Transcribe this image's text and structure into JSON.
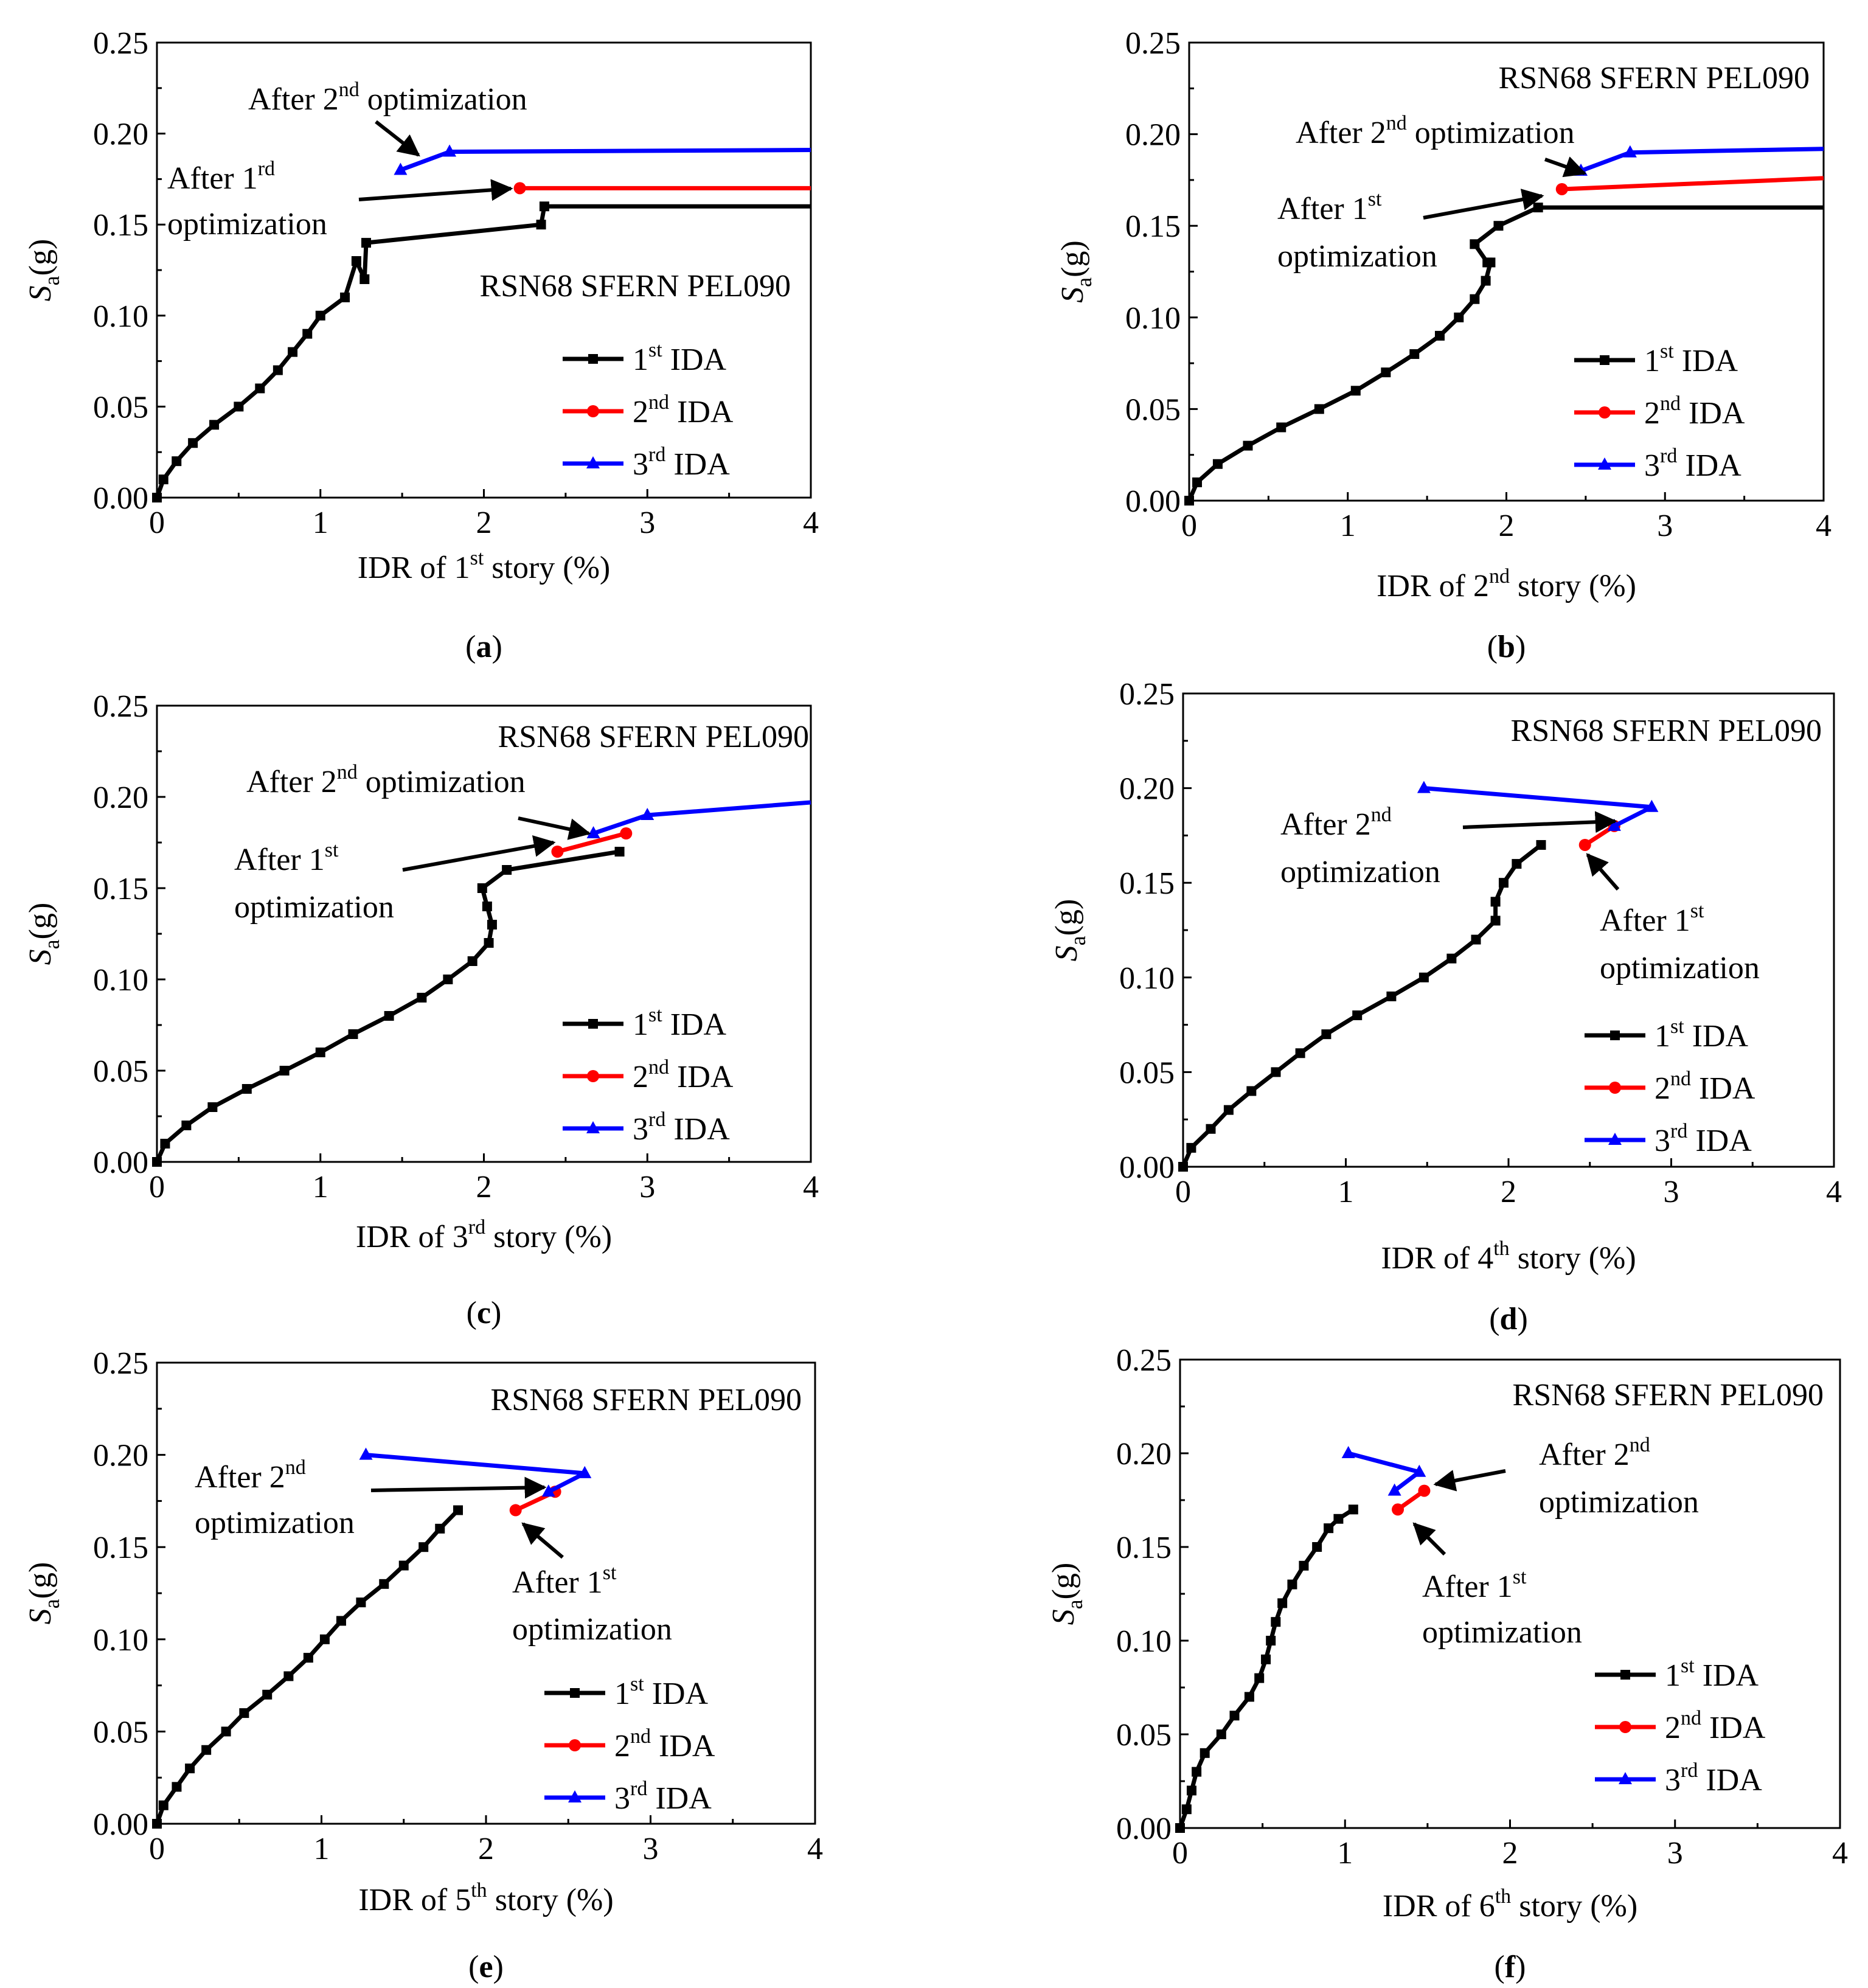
{
  "colors": {
    "ida1": "#000000",
    "ida2": "#ff0000",
    "ida3": "#0000ff"
  },
  "chart_data": [
    {
      "type": "line",
      "caption": "a",
      "title": "RSN68 SFERN PEL090",
      "xlabel": {
        "pre": "IDR of 1",
        "sup": "st",
        "post": " story (%)"
      },
      "ylabel": {
        "main": "S",
        "sub": "a",
        "post": "(g)"
      },
      "xlim": [
        0,
        4
      ],
      "ylim": [
        0,
        0.25
      ],
      "xticks": [
        "0",
        "1",
        "2",
        "3",
        "4"
      ],
      "yticks": [
        "0.00",
        "0.05",
        "0.10",
        "0.15",
        "0.20",
        "0.25"
      ],
      "legend": {
        "placement": "lower-right",
        "items": [
          {
            "pre": "1",
            "sup": "st",
            "post": " IDA"
          },
          {
            "pre": "2",
            "sup": "nd",
            "post": " IDA"
          },
          {
            "pre": "3",
            "sup": "rd",
            "post": " IDA"
          }
        ]
      },
      "series": [
        {
          "name": "1st IDA",
          "marker": "square",
          "x": [
            0,
            0.04,
            0.12,
            0.22,
            0.35,
            0.5,
            0.63,
            0.74,
            0.83,
            0.92,
            1.0,
            1.15,
            1.22,
            1.27,
            1.28,
            2.35,
            2.37,
            4.0
          ],
          "y": [
            0,
            0.01,
            0.02,
            0.03,
            0.04,
            0.05,
            0.06,
            0.07,
            0.08,
            0.09,
            0.1,
            0.11,
            0.13,
            0.12,
            0.14,
            0.15,
            0.16,
            0.16
          ]
        },
        {
          "name": "2nd IDA",
          "marker": "circle",
          "x": [
            2.22,
            4.0
          ],
          "y": [
            0.17,
            0.17
          ]
        },
        {
          "name": "3rd IDA",
          "marker": "triangle",
          "x": [
            1.49,
            1.79,
            4.0
          ],
          "y": [
            0.18,
            0.19,
            0.191
          ]
        }
      ],
      "annotations": [
        {
          "pre": "After 2",
          "sup": "nd",
          "post": " optimization"
        },
        {
          "pre": "After 1",
          "sup": "rd",
          "post": ""
        },
        {
          "pre": "optimization",
          "sup": "",
          "post": ""
        }
      ]
    },
    {
      "type": "line",
      "caption": "b",
      "title": "RSN68 SFERN PEL090",
      "xlabel": {
        "pre": "IDR of 2",
        "sup": "nd",
        "post": " story (%)"
      },
      "ylabel": {
        "main": "S",
        "sub": "a",
        "post": "(g)"
      },
      "xlim": [
        0,
        4
      ],
      "ylim": [
        0,
        0.25
      ],
      "xticks": [
        "0",
        "1",
        "2",
        "3",
        "4"
      ],
      "yticks": [
        "0.00",
        "0.05",
        "0.10",
        "0.15",
        "0.20",
        "0.25"
      ],
      "legend": {
        "placement": "lower-right",
        "items": [
          {
            "pre": "1",
            "sup": "st",
            "post": " IDA"
          },
          {
            "pre": "2",
            "sup": "nd",
            "post": " IDA"
          },
          {
            "pre": "3",
            "sup": "rd",
            "post": " IDA"
          }
        ]
      },
      "series": [
        {
          "name": "1st IDA",
          "marker": "square",
          "x": [
            0,
            0.05,
            0.18,
            0.37,
            0.58,
            0.82,
            1.05,
            1.24,
            1.42,
            1.58,
            1.7,
            1.8,
            1.87,
            1.9,
            1.88,
            1.8,
            1.95,
            2.2,
            4.0
          ],
          "y": [
            0,
            0.01,
            0.02,
            0.03,
            0.04,
            0.05,
            0.06,
            0.07,
            0.08,
            0.09,
            0.1,
            0.11,
            0.12,
            0.13,
            0.13,
            0.14,
            0.15,
            0.16,
            0.16
          ]
        },
        {
          "name": "2nd IDA",
          "marker": "circle",
          "x": [
            2.35,
            4.0
          ],
          "y": [
            0.17,
            0.176
          ]
        },
        {
          "name": "3rd IDA",
          "marker": "triangle",
          "x": [
            2.47,
            2.78,
            4.0
          ],
          "y": [
            0.18,
            0.19,
            0.192
          ]
        }
      ],
      "annotations": [
        {
          "pre": "After 2",
          "sup": "nd",
          "post": " optimization"
        },
        {
          "pre": "After 1",
          "sup": "st",
          "post": ""
        },
        {
          "pre": "optimization",
          "sup": "",
          "post": ""
        }
      ]
    },
    {
      "type": "line",
      "caption": "c",
      "title": "RSN68 SFERN PEL090",
      "xlabel": {
        "pre": "IDR of 3",
        "sup": "rd",
        "post": " story (%)"
      },
      "ylabel": {
        "main": "S",
        "sub": "a",
        "post": "(g)"
      },
      "xlim": [
        0,
        4
      ],
      "ylim": [
        0,
        0.25
      ],
      "xticks": [
        "0",
        "1",
        "2",
        "3",
        "4"
      ],
      "yticks": [
        "0.00",
        "0.05",
        "0.10",
        "0.15",
        "0.20",
        "0.25"
      ],
      "legend": {
        "placement": "lower-right",
        "items": [
          {
            "pre": "1",
            "sup": "st",
            "post": " IDA"
          },
          {
            "pre": "2",
            "sup": "nd",
            "post": " IDA"
          },
          {
            "pre": "3",
            "sup": "rd",
            "post": " IDA"
          }
        ]
      },
      "series": [
        {
          "name": "1st IDA",
          "marker": "square",
          "x": [
            0,
            0.05,
            0.18,
            0.34,
            0.55,
            0.78,
            1.0,
            1.2,
            1.42,
            1.62,
            1.78,
            1.93,
            2.03,
            2.05,
            2.02,
            1.99,
            2.14,
            2.83
          ],
          "y": [
            0,
            0.01,
            0.02,
            0.03,
            0.04,
            0.05,
            0.06,
            0.07,
            0.08,
            0.09,
            0.1,
            0.11,
            0.12,
            0.13,
            0.14,
            0.15,
            0.16,
            0.17
          ]
        },
        {
          "name": "2nd IDA",
          "marker": "circle",
          "x": [
            2.45,
            2.87
          ],
          "y": [
            0.17,
            0.18
          ]
        },
        {
          "name": "3rd IDA",
          "marker": "triangle",
          "x": [
            2.67,
            3.0,
            4.0
          ],
          "y": [
            0.18,
            0.19,
            0.197
          ]
        }
      ],
      "annotations": [
        {
          "pre": "After 2",
          "sup": "nd",
          "post": " optimization"
        },
        {
          "pre": "After 1",
          "sup": "st",
          "post": ""
        },
        {
          "pre": "optimization",
          "sup": "",
          "post": ""
        }
      ]
    },
    {
      "type": "line",
      "caption": "d",
      "title": "RSN68 SFERN PEL090",
      "xlabel": {
        "pre": "IDR of 4",
        "sup": "th",
        "post": " story (%)"
      },
      "ylabel": {
        "main": "S",
        "sub": "a",
        "post": "(g)"
      },
      "xlim": [
        0,
        4
      ],
      "ylim": [
        0,
        0.25
      ],
      "xticks": [
        "0",
        "1",
        "2",
        "3",
        "4"
      ],
      "yticks": [
        "0.00",
        "0.05",
        "0.10",
        "0.15",
        "0.20",
        "0.25"
      ],
      "legend": {
        "placement": "lower-right",
        "items": [
          {
            "pre": "1",
            "sup": "st",
            "post": " IDA"
          },
          {
            "pre": "2",
            "sup": "nd",
            "post": " IDA"
          },
          {
            "pre": "3",
            "sup": "rd",
            "post": " IDA"
          }
        ]
      },
      "series": [
        {
          "name": "1st IDA",
          "marker": "square",
          "x": [
            0,
            0.05,
            0.17,
            0.28,
            0.42,
            0.57,
            0.72,
            0.88,
            1.07,
            1.28,
            1.48,
            1.65,
            1.8,
            1.92,
            1.92,
            1.97,
            2.05,
            2.2
          ],
          "y": [
            0,
            0.01,
            0.02,
            0.03,
            0.04,
            0.05,
            0.06,
            0.07,
            0.08,
            0.09,
            0.1,
            0.11,
            0.12,
            0.13,
            0.14,
            0.15,
            0.16,
            0.17
          ]
        },
        {
          "name": "2nd IDA",
          "marker": "circle",
          "x": [
            2.47,
            2.65
          ],
          "y": [
            0.17,
            0.18
          ]
        },
        {
          "name": "3rd IDA",
          "marker": "triangle",
          "x": [
            2.65,
            2.88,
            1.48
          ],
          "y": [
            0.18,
            0.19,
            0.2
          ]
        }
      ],
      "annotations": [
        {
          "pre": "After 2",
          "sup": "nd",
          "post": ""
        },
        {
          "pre": "optimization",
          "sup": "",
          "post": ""
        },
        {
          "pre": "After 1",
          "sup": "st",
          "post": ""
        },
        {
          "pre": "optimization",
          "sup": "",
          "post": ""
        }
      ]
    },
    {
      "type": "line",
      "caption": "e",
      "title": "RSN68 SFERN PEL090",
      "xlabel": {
        "pre": "IDR of 5",
        "sup": "th",
        "post": " story (%)"
      },
      "ylabel": {
        "main": "S",
        "sub": "a",
        "post": "(g)"
      },
      "xlim": [
        0,
        4
      ],
      "ylim": [
        0,
        0.25
      ],
      "xticks": [
        "0",
        "1",
        "2",
        "3",
        "4"
      ],
      "yticks": [
        "0.00",
        "0.05",
        "0.10",
        "0.15",
        "0.20",
        "0.25"
      ],
      "legend": {
        "placement": "lower-right",
        "items": [
          {
            "pre": "1",
            "sup": "st",
            "post": " IDA"
          },
          {
            "pre": "2",
            "sup": "nd",
            "post": " IDA"
          },
          {
            "pre": "3",
            "sup": "rd",
            "post": " IDA"
          }
        ]
      },
      "series": [
        {
          "name": "1st IDA",
          "marker": "square",
          "x": [
            0,
            0.04,
            0.12,
            0.2,
            0.3,
            0.42,
            0.53,
            0.67,
            0.8,
            0.92,
            1.02,
            1.12,
            1.24,
            1.38,
            1.5,
            1.62,
            1.72,
            1.83
          ],
          "y": [
            0,
            0.01,
            0.02,
            0.03,
            0.04,
            0.05,
            0.06,
            0.07,
            0.08,
            0.09,
            0.1,
            0.11,
            0.12,
            0.13,
            0.14,
            0.15,
            0.16,
            0.17
          ]
        },
        {
          "name": "2nd IDA",
          "marker": "circle",
          "x": [
            2.18,
            2.42
          ],
          "y": [
            0.17,
            0.18
          ]
        },
        {
          "name": "3rd IDA",
          "marker": "triangle",
          "x": [
            2.38,
            2.6,
            1.27
          ],
          "y": [
            0.18,
            0.19,
            0.2
          ]
        }
      ],
      "annotations": [
        {
          "pre": "After 2",
          "sup": "nd",
          "post": ""
        },
        {
          "pre": "optimization",
          "sup": "",
          "post": ""
        },
        {
          "pre": "After 1",
          "sup": "st",
          "post": ""
        },
        {
          "pre": "optimization",
          "sup": "",
          "post": ""
        }
      ]
    },
    {
      "type": "line",
      "caption": "f",
      "title": "RSN68 SFERN PEL090",
      "xlabel": {
        "pre": "IDR of 6",
        "sup": "th",
        "post": " story (%)"
      },
      "ylabel": {
        "main": "S",
        "sub": "a",
        "post": "(g)"
      },
      "xlim": [
        0,
        4
      ],
      "ylim": [
        0,
        0.25
      ],
      "xticks": [
        "0",
        "1",
        "2",
        "3",
        "4"
      ],
      "yticks": [
        "0.00",
        "0.05",
        "0.10",
        "0.15",
        "0.20",
        "0.25"
      ],
      "legend": {
        "placement": "lower-right",
        "items": [
          {
            "pre": "1",
            "sup": "st",
            "post": " IDA"
          },
          {
            "pre": "2",
            "sup": "nd",
            "post": " IDA"
          },
          {
            "pre": "3",
            "sup": "rd",
            "post": " IDA"
          }
        ]
      },
      "series": [
        {
          "name": "1st IDA",
          "marker": "square",
          "x": [
            0,
            0.04,
            0.07,
            0.1,
            0.15,
            0.25,
            0.33,
            0.42,
            0.48,
            0.52,
            0.55,
            0.58,
            0.62,
            0.68,
            0.75,
            0.83,
            0.9,
            0.96,
            1.05
          ],
          "y": [
            0,
            0.01,
            0.02,
            0.03,
            0.04,
            0.05,
            0.06,
            0.07,
            0.08,
            0.09,
            0.1,
            0.11,
            0.12,
            0.13,
            0.14,
            0.15,
            0.16,
            0.165,
            0.17
          ]
        },
        {
          "name": "2nd IDA",
          "marker": "circle",
          "x": [
            1.32,
            1.48
          ],
          "y": [
            0.17,
            0.18
          ]
        },
        {
          "name": "3rd IDA",
          "marker": "triangle",
          "x": [
            1.3,
            1.45,
            1.02
          ],
          "y": [
            0.18,
            0.19,
            0.2
          ]
        }
      ],
      "annotations": [
        {
          "pre": "After 2",
          "sup": "nd",
          "post": ""
        },
        {
          "pre": "optimization",
          "sup": "",
          "post": ""
        },
        {
          "pre": "After 1",
          "sup": "st",
          "post": ""
        },
        {
          "pre": "optimization",
          "sup": "",
          "post": ""
        }
      ]
    }
  ]
}
